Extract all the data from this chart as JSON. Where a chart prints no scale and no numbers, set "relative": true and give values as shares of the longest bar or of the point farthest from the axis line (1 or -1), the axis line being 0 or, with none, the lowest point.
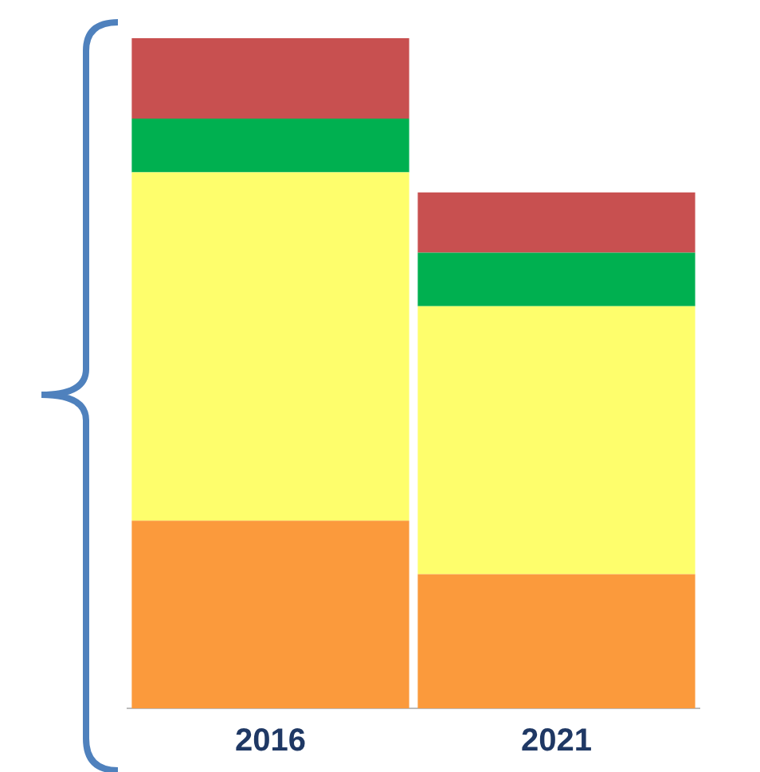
{
  "chart_data": {
    "type": "bar",
    "stacked": true,
    "relative": true,
    "categories": [
      "2016",
      "2021"
    ],
    "series": [
      {
        "color": "#fb9a3c",
        "values": [
          0.28,
          0.2
        ]
      },
      {
        "color": "#fefe6c",
        "values": [
          0.52,
          0.4
        ]
      },
      {
        "color": "#00b050",
        "values": [
          0.08,
          0.08
        ]
      },
      {
        "color": "#c85050",
        "values": [
          0.12,
          0.09
        ]
      }
    ],
    "grid": false,
    "legend": false
  }
}
